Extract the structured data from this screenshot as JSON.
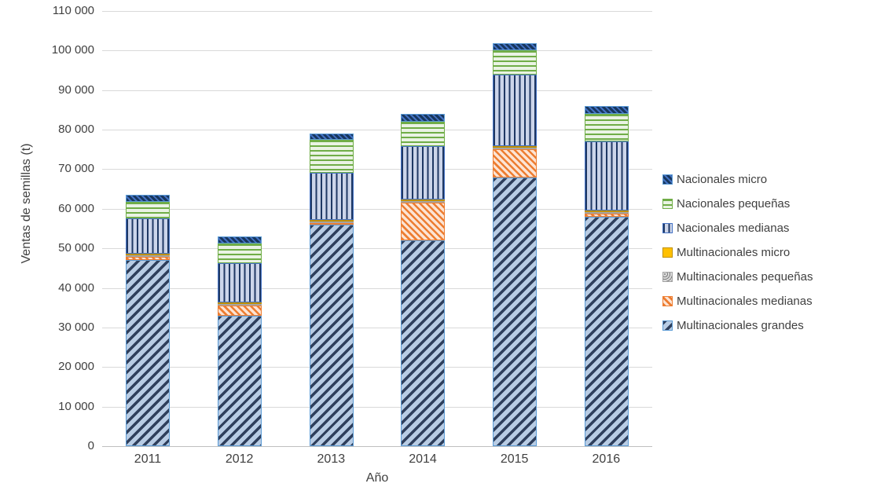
{
  "chart_data": {
    "type": "bar",
    "stacked": true,
    "title": "",
    "xlabel": "Año",
    "ylabel": "Ventas de semillas (t)",
    "ylim": [
      0,
      110000
    ],
    "ytick_step": 10000,
    "grid": true,
    "legend_position": "right",
    "categories": [
      "2011",
      "2012",
      "2013",
      "2014",
      "2015",
      "2016"
    ],
    "series": [
      {
        "name": "Multinacionales grandes",
        "values": [
          47000,
          33000,
          56000,
          52000,
          68000,
          58000
        ],
        "pattern": "diag-wide",
        "fg": "#2f3f5c",
        "bg": "#b8cce4",
        "stroke": "#5b9bd5"
      },
      {
        "name": "Multinacionales medianas",
        "values": [
          800,
          2500,
          400,
          9500,
          7000,
          800
        ],
        "pattern": "diag-thin",
        "fg": "#ed7d31",
        "bg": "#fce4d4",
        "stroke": "#ed7d31"
      },
      {
        "name": "Multinacionales pequeñas",
        "values": [
          200,
          300,
          200,
          200,
          300,
          200
        ],
        "pattern": "dots",
        "fg": "#7f7f7f",
        "bg": "#d9d9d9",
        "stroke": "#a5a5a5"
      },
      {
        "name": "Multinacionales micro",
        "values": [
          100,
          200,
          100,
          100,
          200,
          100
        ],
        "pattern": "solid",
        "fg": "#ffc000",
        "bg": "#ffc000",
        "stroke": "#bf9000"
      },
      {
        "name": "Nacionales medianas",
        "values": [
          9000,
          10000,
          12000,
          13500,
          18200,
          17500
        ],
        "pattern": "vert",
        "fg": "#1f3864",
        "bg": "#ccd5ea",
        "stroke": "#4472c4"
      },
      {
        "name": "Nacionales pequeñas",
        "values": [
          4200,
          5000,
          8300,
          6200,
          6000,
          7000
        ],
        "pattern": "horiz",
        "fg": "#70ad47",
        "bg": "#eaf3e4",
        "stroke": "#70ad47"
      },
      {
        "name": "Nacionales micro",
        "values": [
          1700,
          1800,
          1500,
          2000,
          1800,
          1900
        ],
        "pattern": "diag-dense",
        "fg": "#17375e",
        "bg": "#4472c4",
        "stroke": "#5b9bd5"
      }
    ],
    "legend_order": [
      "Nacionales micro",
      "Nacionales pequeñas",
      "Nacionales medianas",
      "Multinacionales micro",
      "Multinacionales pequeñas",
      "Multinacionales medianas",
      "Multinacionales grandes"
    ],
    "colors": {
      "gridline": "#d9d9d9",
      "axis_line": "#bfbfbf",
      "text": "#404040"
    }
  }
}
